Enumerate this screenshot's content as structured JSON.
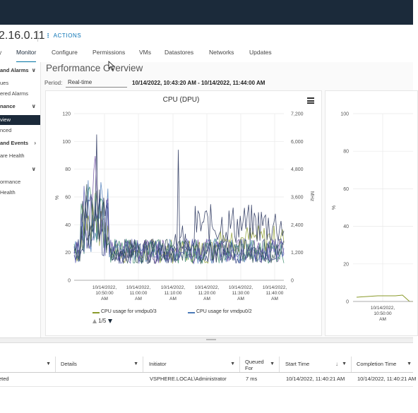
{
  "header": {
    "host_title": "2.16.0.11",
    "actions_label": "ACTIONS",
    "actions_icon": "vertical-dots-icon"
  },
  "tabs": [
    {
      "label": "y"
    },
    {
      "label": "Monitor",
      "active": true
    },
    {
      "label": "Configure"
    },
    {
      "label": "Permissions"
    },
    {
      "label": "VMs"
    },
    {
      "label": "Datastores"
    },
    {
      "label": "Networks"
    },
    {
      "label": "Updates"
    }
  ],
  "sidebar": {
    "items": [
      {
        "label": "and Alarms",
        "group": true,
        "chevron": "chevron-down-icon"
      },
      {
        "label": "ues"
      },
      {
        "label": "ered Alarms"
      },
      {
        "label": "nance",
        "group": true,
        "chevron": "chevron-down-icon"
      },
      {
        "label": "view",
        "selected": true
      },
      {
        "label": "nced"
      },
      {
        "label": "and Events",
        "group": true,
        "chevron": "chevron-right-icon"
      },
      {
        "label": "are Health"
      },
      {
        "label": "",
        "group": true,
        "chevron": "chevron-down-icon"
      },
      {
        "label": "ormance"
      },
      {
        "label": "Health"
      }
    ]
  },
  "main": {
    "title": "Performance Overview",
    "period_label": "Period:",
    "period_value": "Real-time",
    "time_range": "10/14/2022, 10:43:20 AM - 10/14/2022, 11:44:00 AM"
  },
  "chart_data": [
    {
      "type": "line",
      "title": "CPU (DPU)",
      "ylabel": "%",
      "y2label": "MHz",
      "ylim": [
        0,
        120
      ],
      "y2lim": [
        0,
        7200
      ],
      "yticks": [
        "120",
        "100",
        "80",
        "60",
        "40",
        "20",
        "0"
      ],
      "y2ticks": [
        "7,200",
        "6,000",
        "4,800",
        "3,600",
        "2,400",
        "1,200",
        "0"
      ],
      "xticks": [
        {
          "d": "10/14/2022,",
          "t": "10:50:00",
          "a": "AM"
        },
        {
          "d": "10/14/2022,",
          "t": "11:00:00",
          "a": "AM"
        },
        {
          "d": "10/14/2022,",
          "t": "11:10:00",
          "a": "AM"
        },
        {
          "d": "10/14/2022,",
          "t": "11:20:00",
          "a": "AM"
        },
        {
          "d": "10/14/2022,",
          "t": "11:30:00",
          "a": "AM"
        },
        {
          "d": "10/14/2022,",
          "t": "11:40:00",
          "a": "AM"
        }
      ],
      "grid": true,
      "legend": "bottom",
      "series": [
        {
          "name": "CPU usage for vmdpu0/3",
          "color": "#8a9a2a"
        },
        {
          "name": "CPU usage for vmdpu0/2",
          "color": "#4a7ab8"
        }
      ],
      "legend_page": "1/5",
      "hidden_series_colors": [
        "#1e2a55",
        "#6a4aa0",
        "#3a8a6a",
        "#2a3a7a",
        "#5a5ab0"
      ],
      "note": "dense multi-series lines; peaks near 105% around 10:52 and ~95% around 11:13; baseline ~5-35%"
    },
    {
      "type": "line",
      "title": "",
      "ylabel": "%",
      "ylim": [
        0,
        100
      ],
      "yticks": [
        "100",
        "80",
        "60",
        "40",
        "20",
        "0"
      ],
      "xticks": [
        {
          "d": "10/14/2022,",
          "t": "10:50:00",
          "a": "AM"
        }
      ],
      "series_color": "#8a9a2a",
      "note": "near-zero flat line ~3%"
    }
  ],
  "tasks": {
    "columns": [
      "",
      "Details",
      "Initiator",
      "Queued For",
      "Start Time",
      "Completion Time"
    ],
    "rows": [
      {
        "status": "eted",
        "details": "",
        "initiator": "VSPHERE.LOCAL\\Administrator",
        "queued": "7 ms",
        "start": "10/14/2022, 11:40:21 AM",
        "completion": "10/14/2022, 11:40:21 AM"
      }
    ]
  }
}
